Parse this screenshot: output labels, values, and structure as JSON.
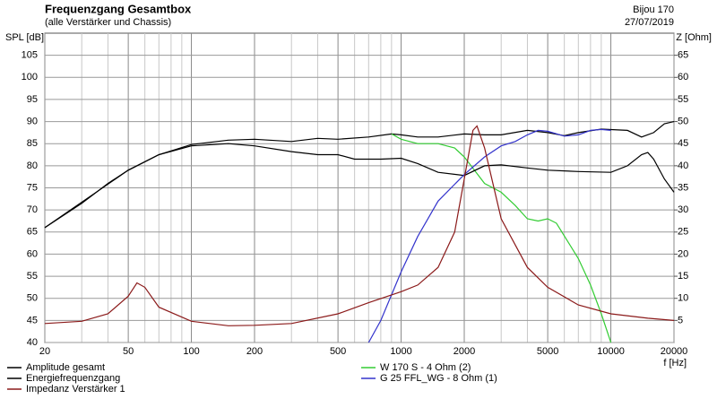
{
  "chart_data": {
    "type": "line",
    "title": "Frequenzgang Gesamtbox",
    "subtitle": "(alle Verstärker und Chassis)",
    "project": "Bijou 170",
    "date": "27/07/2019",
    "ylabel": "SPL [dB]",
    "y2label": "Z [Ohm]",
    "xlabel": "f [Hz]",
    "xscale": "log",
    "xlim": [
      20,
      20000
    ],
    "xticks": [
      20,
      {
        "value": 30,
        "label": null
      },
      {
        "value": 40,
        "label": null
      },
      50,
      {
        "value": 60,
        "label": null
      },
      {
        "value": 70,
        "label": null
      },
      {
        "value": 80,
        "label": null
      },
      {
        "value": 90,
        "label": null
      },
      100,
      200,
      {
        "value": 300,
        "label": null
      },
      {
        "value": 400,
        "label": null
      },
      500,
      {
        "value": 600,
        "label": null
      },
      {
        "value": 700,
        "label": null
      },
      {
        "value": 800,
        "label": null
      },
      {
        "value": 900,
        "label": null
      },
      1000,
      2000,
      {
        "value": 3000,
        "label": null
      },
      {
        "value": 4000,
        "label": null
      },
      5000,
      {
        "value": 6000,
        "label": null
      },
      {
        "value": 7000,
        "label": null
      },
      {
        "value": 8000,
        "label": null
      },
      {
        "value": 9000,
        "label": null
      },
      10000,
      20000
    ],
    "ylim": [
      40,
      110
    ],
    "yticks": [
      40,
      45,
      50,
      55,
      60,
      65,
      70,
      75,
      80,
      85,
      90,
      95,
      100,
      105
    ],
    "y2lim": [
      0,
      70
    ],
    "y2ticks": [
      5,
      10,
      15,
      20,
      25,
      30,
      35,
      40,
      45,
      50,
      55,
      60,
      65
    ],
    "grid": true,
    "series": [
      {
        "name": "Amplitude gesamt",
        "color": "#000000",
        "x": [
          20,
          30,
          40,
          50,
          70,
          100,
          150,
          200,
          300,
          400,
          500,
          700,
          900,
          1000,
          1200,
          1500,
          2000,
          2500,
          3000,
          4000,
          5000,
          6000,
          7000,
          9000,
          12000,
          14000,
          16000,
          18000,
          20000
        ],
        "values": [
          66,
          71.5,
          76,
          79,
          82.5,
          84.8,
          85.8,
          86,
          85.5,
          86.2,
          86,
          86.5,
          87.2,
          87,
          86.5,
          86.5,
          87.2,
          87,
          87,
          88,
          87.5,
          86.8,
          87.5,
          88.3,
          88,
          86.5,
          87.5,
          89.5,
          90
        ]
      },
      {
        "name": "W 170 S - 4 Ohm (2)",
        "color": "#33cc33",
        "x": [
          900,
          1000,
          1200,
          1500,
          1800,
          2000,
          2500,
          3000,
          3500,
          4000,
          4500,
          5000,
          5500,
          7000,
          8000,
          9000,
          10000
        ],
        "values": [
          87.2,
          86,
          85,
          85,
          84,
          82,
          76,
          74,
          71,
          68,
          67.5,
          68,
          67,
          59,
          53,
          46.5,
          40
        ]
      },
      {
        "name": "Energiefrequenzgang",
        "color": "#000000",
        "x": [
          20,
          50,
          70,
          100,
          150,
          200,
          300,
          400,
          500,
          600,
          800,
          1000,
          1200,
          1500,
          2000,
          2500,
          3000,
          4000,
          5000,
          7000,
          10000,
          12000,
          14000,
          15000,
          16000,
          18000,
          20000
        ],
        "values": [
          66,
          79,
          82.5,
          84.5,
          85,
          84.5,
          83.2,
          82.5,
          82.5,
          81.5,
          81.5,
          81.7,
          80.5,
          78.5,
          77.8,
          80,
          80.2,
          79.5,
          79,
          78.7,
          78.5,
          80,
          82.5,
          83,
          81.5,
          77,
          74
        ]
      },
      {
        "name": "G 25 FFL_WG - 8 Ohm (1)",
        "color": "#3333cc",
        "x": [
          700,
          800,
          1000,
          1200,
          1500,
          2000,
          2500,
          3000,
          3500,
          4000,
          4500,
          5000,
          6000,
          7000,
          8000,
          9000,
          10000
        ],
        "values": [
          40,
          45,
          56,
          64,
          72,
          78,
          82,
          84.5,
          85.5,
          87,
          88,
          87.8,
          86.7,
          87,
          88,
          88.2,
          88
        ]
      },
      {
        "name": "Impedanz Verstärker 1",
        "color": "#8b1a1a",
        "axis": "y2",
        "x": [
          20,
          30,
          40,
          50,
          55,
          60,
          70,
          100,
          150,
          200,
          300,
          500,
          700,
          1000,
          1200,
          1500,
          1800,
          2000,
          2200,
          2300,
          2500,
          3000,
          4000,
          5000,
          7000,
          10000,
          15000,
          20000
        ],
        "values": [
          4.3,
          4.8,
          6.5,
          10.5,
          13.5,
          12.5,
          8,
          4.8,
          3.8,
          3.9,
          4.3,
          6.5,
          9,
          11.5,
          13,
          17,
          25,
          37,
          48,
          49,
          44,
          28,
          17,
          12.5,
          8.5,
          6.5,
          5.5,
          5
        ]
      }
    ]
  }
}
